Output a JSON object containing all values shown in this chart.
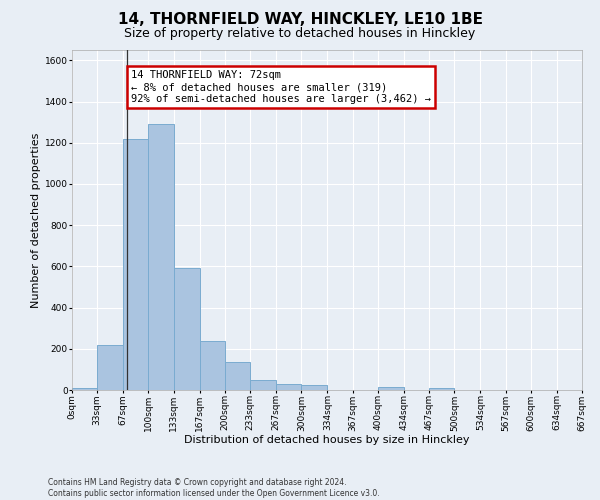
{
  "title_line1": "14, THORNFIELD WAY, HINCKLEY, LE10 1BE",
  "title_line2": "Size of property relative to detached houses in Hinckley",
  "xlabel": "Distribution of detached houses by size in Hinckley",
  "ylabel": "Number of detached properties",
  "footer_line1": "Contains HM Land Registry data © Crown copyright and database right 2024.",
  "footer_line2": "Contains public sector information licensed under the Open Government Licence v3.0.",
  "annotation_title": "14 THORNFIELD WAY: 72sqm",
  "annotation_line1": "← 8% of detached houses are smaller (319)",
  "annotation_line2": "92% of semi-detached houses are larger (3,462) →",
  "property_size": 72,
  "bar_edges": [
    0,
    33,
    67,
    100,
    133,
    167,
    200,
    233,
    267,
    300,
    334,
    367,
    400,
    434,
    467,
    500,
    534,
    567,
    600,
    634,
    667
  ],
  "bar_heights": [
    10,
    220,
    1220,
    1290,
    590,
    240,
    135,
    50,
    30,
    25,
    0,
    0,
    15,
    0,
    12,
    0,
    0,
    0,
    0,
    0
  ],
  "bar_color": "#aac4e0",
  "bar_edgecolor": "#7aabd0",
  "vline_color": "#333333",
  "vline_x": 72,
  "ylim": [
    0,
    1650
  ],
  "yticks": [
    0,
    200,
    400,
    600,
    800,
    1000,
    1200,
    1400,
    1600
  ],
  "background_color": "#e8eef5",
  "plot_background": "#e8eef5",
  "grid_color": "#ffffff",
  "annotation_box_color": "#cc0000",
  "title_fontsize": 11,
  "subtitle_fontsize": 9,
  "tick_label_fontsize": 6.5,
  "ylabel_fontsize": 8,
  "xlabel_fontsize": 8,
  "annotation_fontsize": 7.5,
  "footer_fontsize": 5.5
}
